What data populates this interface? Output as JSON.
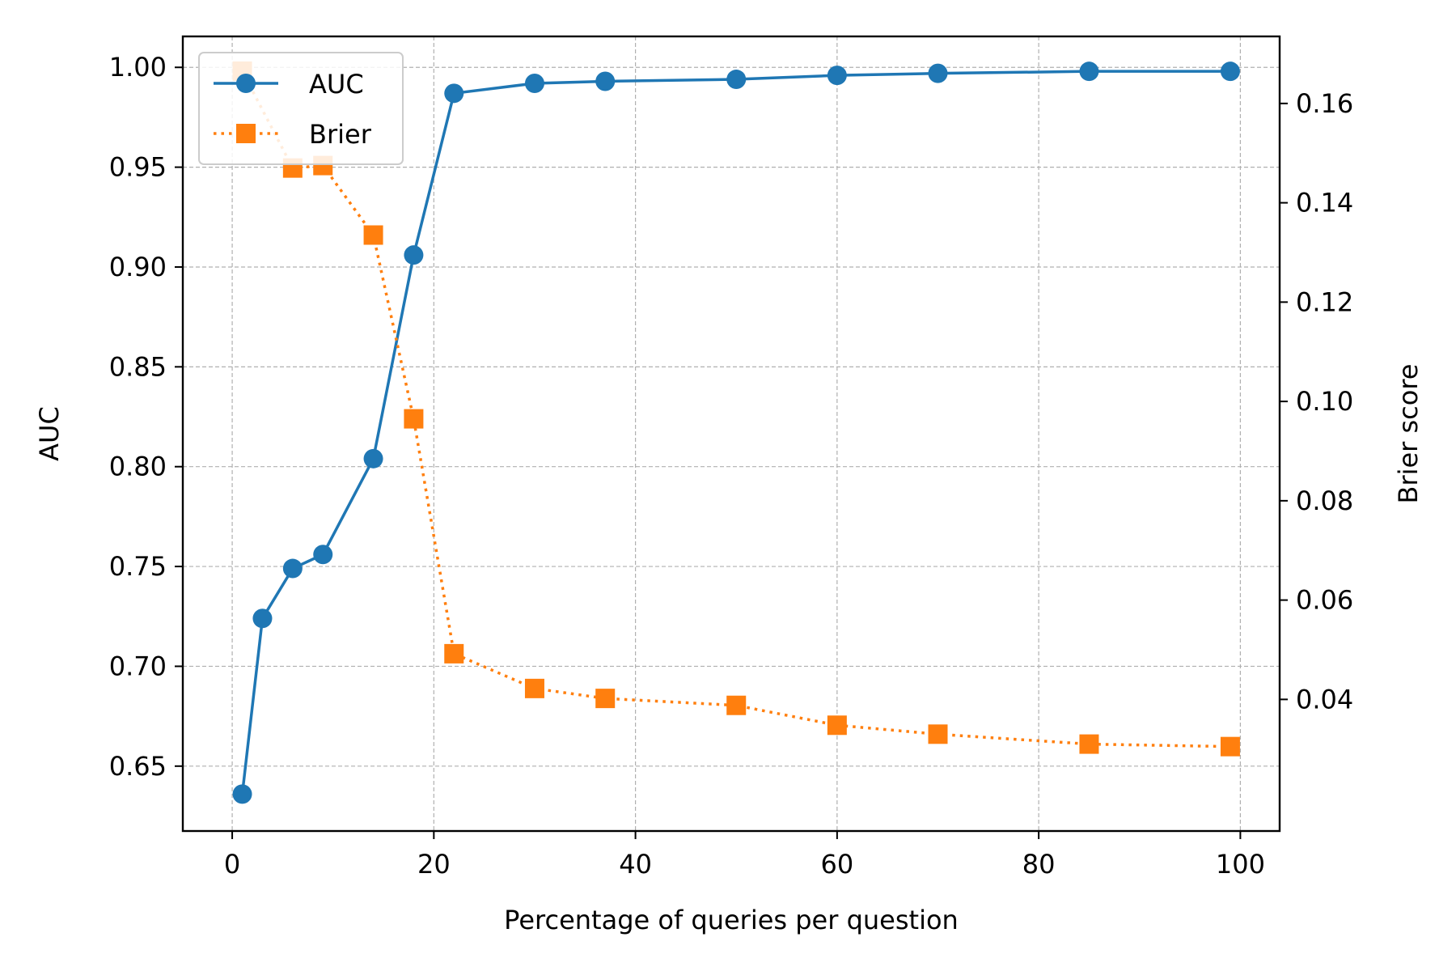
{
  "chart_data": {
    "type": "line",
    "title": "",
    "xlabel": "Percentage of queries per question",
    "ylabel": "AUC",
    "y2label": "Brier score",
    "xlim": [
      -4.9,
      103.9
    ],
    "ylim": [
      0.6175,
      1.0155
    ],
    "y2lim": [
      0.0135,
      0.1735
    ],
    "x_ticks": [
      0,
      20,
      40,
      60,
      80,
      100
    ],
    "x_tick_labels": [
      "0",
      "20",
      "40",
      "60",
      "80",
      "100"
    ],
    "y_ticks": [
      0.65,
      0.7,
      0.75,
      0.8,
      0.85,
      0.9,
      0.95,
      1.0
    ],
    "y_tick_labels": [
      "0.65",
      "0.70",
      "0.75",
      "0.80",
      "0.85",
      "0.90",
      "0.95",
      "1.00"
    ],
    "y2_ticks": [
      0.04,
      0.06,
      0.08,
      0.1,
      0.12,
      0.14,
      0.16
    ],
    "y2_tick_labels": [
      "0.04",
      "0.06",
      "0.08",
      "0.10",
      "0.12",
      "0.14",
      "0.16"
    ],
    "grid": true,
    "legend_position": "top-left",
    "series": [
      {
        "name": "AUC",
        "axis": "left",
        "color": "#1f77b4",
        "line_style": "solid",
        "marker": "circle",
        "x": [
          1,
          3,
          6,
          9,
          14,
          18,
          22,
          30,
          37,
          50,
          60,
          70,
          85,
          99
        ],
        "values": [
          0.636,
          0.724,
          0.749,
          0.756,
          0.804,
          0.906,
          0.987,
          0.992,
          0.993,
          0.994,
          0.996,
          0.997,
          0.998,
          0.998
        ]
      },
      {
        "name": "Brier",
        "axis": "right",
        "color": "#ff7f0e",
        "line_style": "dotted",
        "marker": "square",
        "x": [
          1,
          6,
          9,
          14,
          18,
          22,
          30,
          37,
          50,
          60,
          70,
          85,
          99
        ],
        "values": [
          0.1665,
          0.147,
          0.1475,
          0.1335,
          0.0965,
          0.0492,
          0.0422,
          0.0402,
          0.0388,
          0.0348,
          0.033,
          0.031,
          0.0305
        ]
      }
    ]
  }
}
